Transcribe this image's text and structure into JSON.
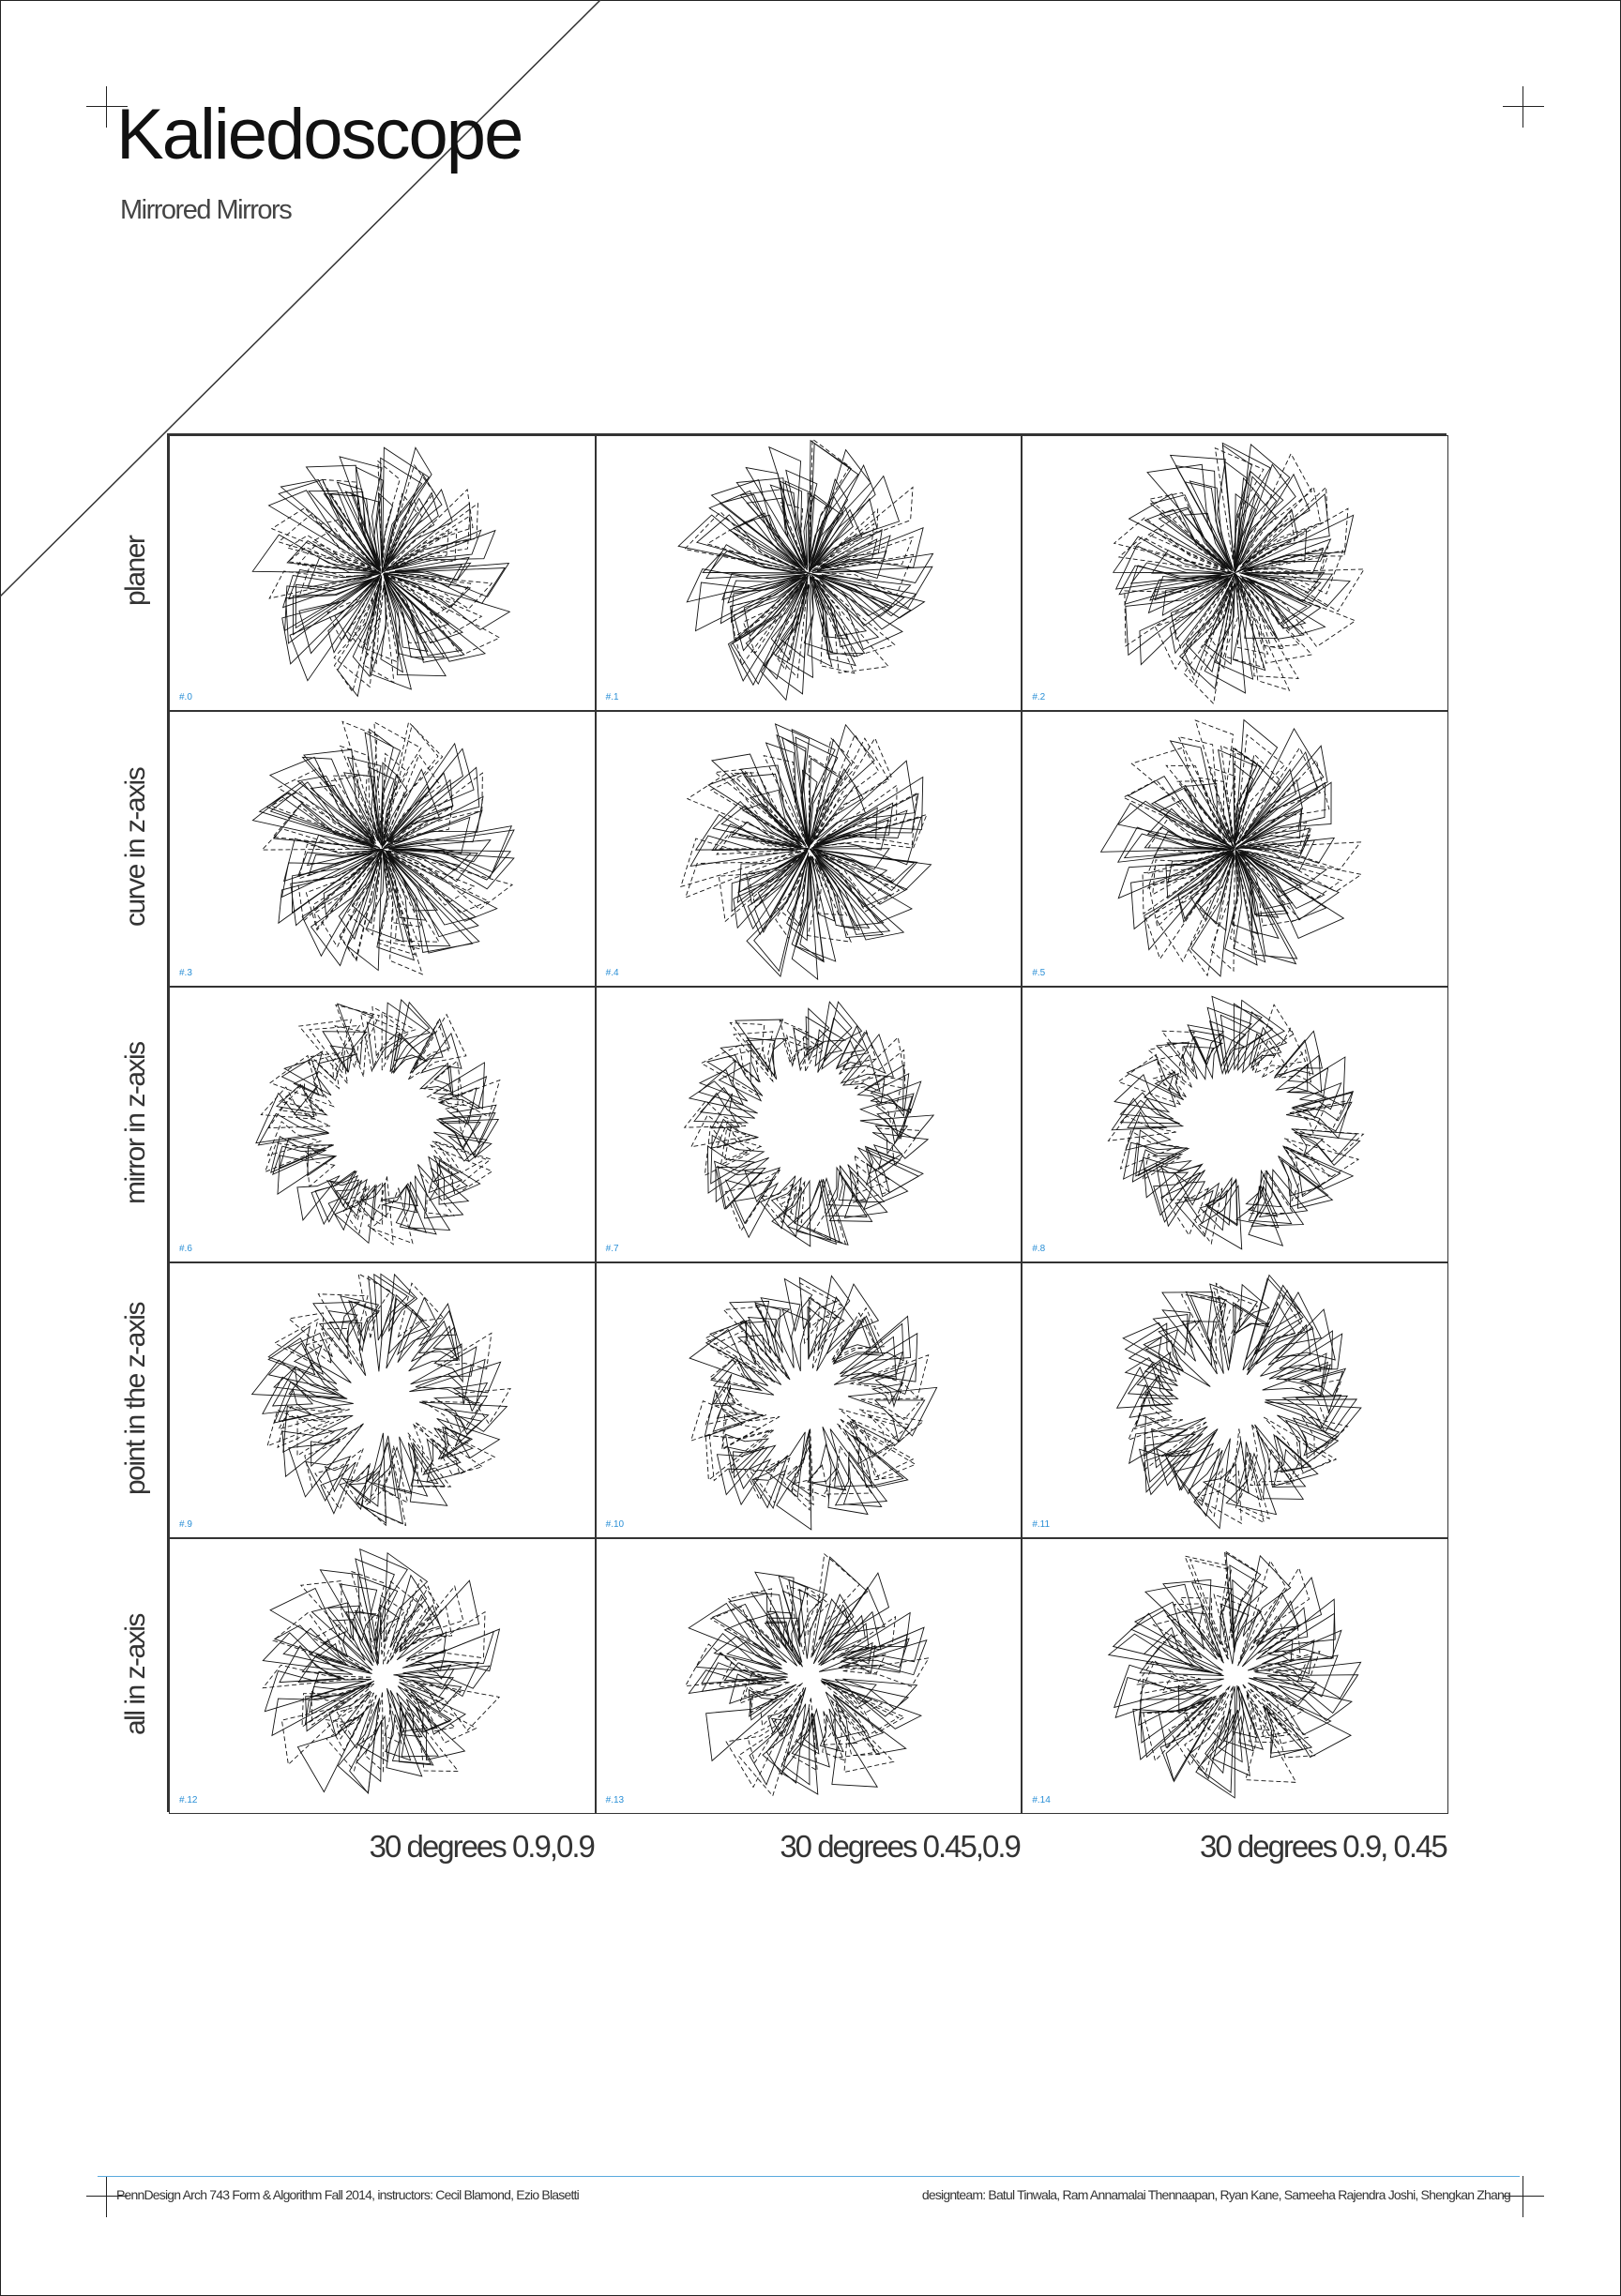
{
  "title": "Kaliedoscope",
  "subtitle": "Mirrored Mirrors",
  "rows": [
    "planer",
    "curve in z-axis",
    "mirror in z-axis",
    "point in the z-axis",
    "all in z-axis"
  ],
  "columns": [
    "30 degrees 0.9,0.9",
    "30 degrees 0.45,0.9",
    "30 degrees 0.9, 0.45"
  ],
  "cells": [
    "#.0",
    "#.1",
    "#.2",
    "#.3",
    "#.4",
    "#.5",
    "#.6",
    "#.7",
    "#.8",
    "#.9",
    "#.10",
    "#.11",
    "#.12",
    "#.13",
    "#.14"
  ],
  "footer": {
    "course": "PennDesign Arch 743 Form & Algorithm Fall 2014, instructors: Cecil Blamond, Ezio Blasetti",
    "team": "designteam: Batul Tinwala, Ram Annamalai Thennaapan, Ryan Kane, Sameeha Rajendra Joshi, Shengkan Zhang"
  },
  "colors": {
    "accent": "#2a8fd6",
    "line": "#111111"
  }
}
